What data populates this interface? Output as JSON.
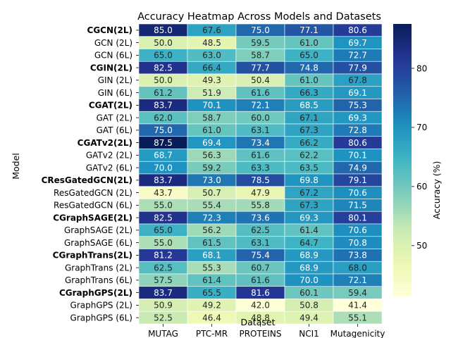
{
  "chart_data": {
    "type": "heatmap",
    "title": "Accuracy Heatmap Across Models and Datasets",
    "xlabel": "Dataset",
    "ylabel": "Model",
    "colorbar_label": "Accuracy (%)",
    "colormap": "YlGnBu",
    "vmin": 41.4,
    "vmax": 87.5,
    "colorbar_ticks": [
      50,
      60,
      70,
      80
    ],
    "columns": [
      "MUTAG",
      "PTC-MR",
      "PROTEINS",
      "NCI1",
      "Mutagenicity"
    ],
    "rows": [
      {
        "label": "CGCN(2L)",
        "bold": true,
        "values": [
          85.0,
          67.6,
          75.0,
          77.1,
          80.6
        ]
      },
      {
        "label": "GCN (2L)",
        "bold": false,
        "values": [
          50.0,
          48.5,
          59.5,
          61.0,
          69.7
        ]
      },
      {
        "label": "GCN (6L)",
        "bold": false,
        "values": [
          65.0,
          63.0,
          58.7,
          65.0,
          72.7
        ]
      },
      {
        "label": "CGIN(2L)",
        "bold": true,
        "values": [
          82.5,
          66.4,
          77.7,
          74.8,
          77.9
        ]
      },
      {
        "label": "GIN (2L)",
        "bold": false,
        "values": [
          50.0,
          49.3,
          50.4,
          61.0,
          67.8
        ]
      },
      {
        "label": "GIN (6L)",
        "bold": false,
        "values": [
          61.2,
          51.9,
          61.6,
          66.3,
          69.1
        ]
      },
      {
        "label": "CGAT(2L)",
        "bold": true,
        "values": [
          83.7,
          70.1,
          72.1,
          68.5,
          75.3
        ]
      },
      {
        "label": "GAT (2L)",
        "bold": false,
        "values": [
          62.0,
          58.7,
          60.0,
          67.1,
          69.3
        ]
      },
      {
        "label": "GAT (6L)",
        "bold": false,
        "values": [
          75.0,
          61.0,
          63.1,
          67.3,
          72.8
        ]
      },
      {
        "label": "CGATv2(2L)",
        "bold": true,
        "values": [
          87.5,
          69.4,
          73.4,
          66.2,
          80.6
        ]
      },
      {
        "label": "GATv2 (2L)",
        "bold": false,
        "values": [
          68.7,
          56.3,
          61.6,
          62.2,
          70.1
        ]
      },
      {
        "label": "GATv2 (6L)",
        "bold": false,
        "values": [
          70.0,
          59.2,
          63.3,
          63.5,
          74.9
        ]
      },
      {
        "label": "CResGatedGCN(2L)",
        "bold": true,
        "values": [
          83.7,
          73.0,
          78.5,
          69.8,
          79.1
        ]
      },
      {
        "label": "ResGatedGCN (2L)",
        "bold": false,
        "values": [
          43.7,
          50.7,
          47.9,
          67.2,
          70.6
        ]
      },
      {
        "label": "ResGatedGCN (6L)",
        "bold": false,
        "values": [
          55.0,
          55.4,
          55.8,
          67.3,
          71.5
        ]
      },
      {
        "label": "CGraphSAGE(2L)",
        "bold": true,
        "values": [
          82.5,
          72.3,
          73.6,
          69.3,
          80.1
        ]
      },
      {
        "label": "GraphSAGE (2L)",
        "bold": false,
        "values": [
          65.0,
          56.2,
          62.5,
          61.4,
          70.6
        ]
      },
      {
        "label": "GraphSAGE (6L)",
        "bold": false,
        "values": [
          55.0,
          61.5,
          63.1,
          64.7,
          70.8
        ]
      },
      {
        "label": "CGraphTrans(2L)",
        "bold": true,
        "values": [
          81.2,
          68.1,
          75.4,
          68.9,
          73.8
        ]
      },
      {
        "label": "GraphTrans (2L)",
        "bold": false,
        "values": [
          62.5,
          55.3,
          60.7,
          68.9,
          68.0
        ]
      },
      {
        "label": "GraphTrans (6L)",
        "bold": false,
        "values": [
          57.5,
          61.4,
          61.6,
          70.0,
          72.1
        ]
      },
      {
        "label": "CGraphGPS(2L)",
        "bold": true,
        "values": [
          83.7,
          65.5,
          81.6,
          60.1,
          59.4
        ]
      },
      {
        "label": "GraphGPS (2L)",
        "bold": false,
        "values": [
          50.9,
          49.2,
          42.0,
          50.8,
          41.4
        ]
      },
      {
        "label": "GraphGPS (6L)",
        "bold": false,
        "values": [
          52.5,
          46.4,
          48.8,
          49.4,
          55.1
        ]
      }
    ]
  }
}
